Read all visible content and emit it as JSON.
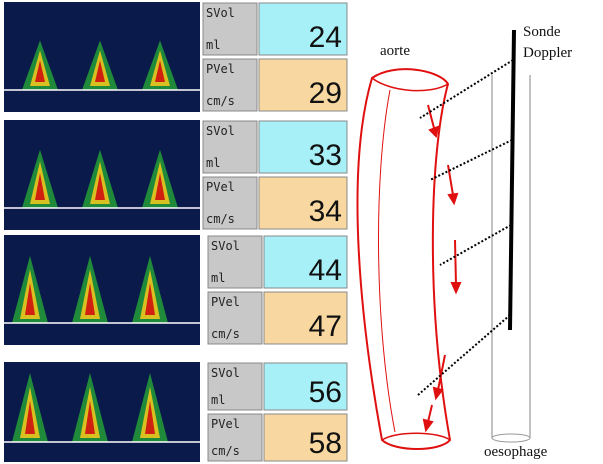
{
  "panels": [
    {
      "svol_label": "SVol",
      "svol_unit": "ml",
      "svol": "24",
      "pvel_label": "PVel",
      "pvel_unit": "cm/s",
      "pvel": "29"
    },
    {
      "svol_label": "SVol",
      "svol_unit": "ml",
      "svol": "33",
      "pvel_label": "PVel",
      "pvel_unit": "cm/s",
      "pvel": "34"
    },
    {
      "svol_label": "SVol",
      "svol_unit": "ml",
      "svol": "44",
      "pvel_label": "PVel",
      "pvel_unit": "cm/s",
      "pvel": "47"
    },
    {
      "svol_label": "SVol",
      "svol_unit": "ml",
      "svol": "56",
      "pvel_label": "PVel",
      "pvel_unit": "cm/s",
      "pvel": "58"
    }
  ],
  "diagram": {
    "aorta_label": "aorte",
    "probe_label_1": "Sonde",
    "probe_label_2": "Doppler",
    "oesophagus_label": "oesophage"
  }
}
